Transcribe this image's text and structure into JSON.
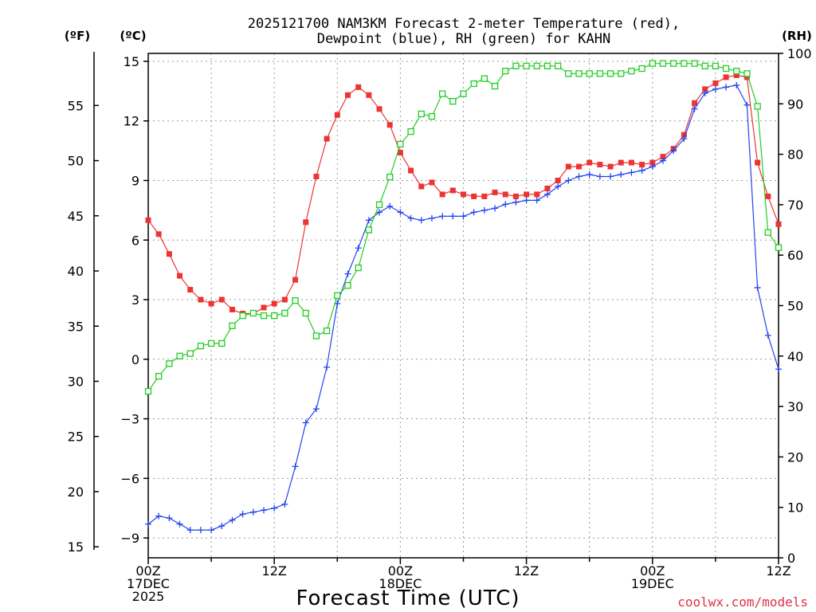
{
  "chart_data": {
    "type": "line",
    "title_line1": "2025121700 NAM3KM Forecast 2-meter Temperature (red),",
    "title_line2": "Dewpoint (blue), RH (green) for KAHN",
    "units": {
      "fahrenheit": "(ºF)",
      "celsius": "(ºC)",
      "rh": "(RH)"
    },
    "xlabel": "Forecast Time (UTC)",
    "credit": "coolwx.com/models",
    "x_range": [
      0,
      60
    ],
    "x_ticks": [
      {
        "hour": 0,
        "lines": [
          "00Z",
          "17DEC",
          "2025"
        ]
      },
      {
        "hour": 12,
        "lines": [
          "12Z"
        ]
      },
      {
        "hour": 24,
        "lines": [
          "00Z",
          "18DEC"
        ]
      },
      {
        "hour": 36,
        "lines": [
          "12Z"
        ]
      },
      {
        "hour": 48,
        "lines": [
          "00Z",
          "19DEC"
        ]
      },
      {
        "hour": 60,
        "lines": [
          "12Z"
        ]
      }
    ],
    "celsius_axis": {
      "range": [
        -10,
        15.4
      ],
      "ticks": [
        -9,
        -6,
        -3,
        0,
        3,
        6,
        9,
        12,
        15
      ],
      "labels": [
        "−9",
        "−6",
        "−3",
        "0",
        "3",
        "6",
        "9",
        "12",
        "15"
      ]
    },
    "fahrenheit_axis": {
      "ticks": [
        15,
        20,
        25,
        30,
        35,
        40,
        45,
        50,
        55
      ],
      "labels": [
        "15",
        "20",
        "25",
        "30",
        "35",
        "40",
        "45",
        "50",
        "55"
      ]
    },
    "rh_axis": {
      "range": [
        0,
        100
      ],
      "ticks": [
        0,
        10,
        20,
        30,
        40,
        50,
        60,
        70,
        80,
        90,
        100
      ],
      "labels": [
        "0",
        "10",
        "20",
        "30",
        "40",
        "50",
        "60",
        "70",
        "80",
        "90",
        "100"
      ]
    },
    "series": [
      {
        "name": "2-meter Temperature",
        "axis": "celsius",
        "color": "#ee3333",
        "marker": "filled-square",
        "values": [
          7.0,
          6.3,
          5.3,
          4.2,
          3.5,
          3.0,
          2.8,
          3.0,
          2.5,
          2.3,
          2.3,
          2.6,
          2.8,
          3.0,
          4.0,
          6.9,
          9.2,
          11.1,
          12.3,
          13.3,
          13.7,
          13.3,
          12.6,
          11.8,
          10.4,
          9.5,
          8.7,
          8.9,
          8.3,
          8.5,
          8.3,
          8.2,
          8.2,
          8.4,
          8.3,
          8.2,
          8.3,
          8.3,
          8.6,
          9.0,
          9.7,
          9.7,
          9.9,
          9.8,
          9.7,
          9.9,
          9.9,
          9.8,
          9.9,
          10.2,
          10.6,
          11.3,
          12.9,
          13.6,
          13.9,
          14.2,
          14.3,
          14.2,
          9.9,
          8.2,
          6.8
        ]
      },
      {
        "name": "Dewpoint",
        "axis": "celsius",
        "color": "#2244ee",
        "marker": "plus",
        "values": [
          -8.3,
          -7.9,
          -8.0,
          -8.3,
          -8.6,
          -8.6,
          -8.6,
          -8.4,
          -8.1,
          -7.8,
          -7.7,
          -7.6,
          -7.5,
          -7.3,
          -5.4,
          -3.2,
          -2.5,
          -0.4,
          2.8,
          4.3,
          5.6,
          7.0,
          7.4,
          7.7,
          7.4,
          7.1,
          7.0,
          7.1,
          7.2,
          7.2,
          7.2,
          7.4,
          7.5,
          7.6,
          7.8,
          7.9,
          8.0,
          8.0,
          8.3,
          8.7,
          9.0,
          9.2,
          9.3,
          9.2,
          9.2,
          9.3,
          9.4,
          9.5,
          9.7,
          10.0,
          10.5,
          11.1,
          12.6,
          13.4,
          13.6,
          13.7,
          13.8,
          12.8,
          3.6,
          1.2,
          -0.5
        ]
      },
      {
        "name": "RH",
        "axis": "rh",
        "color": "#22cc22",
        "marker": "open-square",
        "values": [
          33,
          36,
          38.5,
          40,
          40.5,
          42,
          42.5,
          42.5,
          46,
          48,
          48.5,
          48,
          48,
          48.5,
          51,
          48.5,
          44,
          45,
          52,
          54,
          57.5,
          65,
          70,
          75.5,
          82,
          84.5,
          88,
          87.5,
          92,
          90.5,
          92,
          94,
          95,
          93.5,
          96.5,
          97.5,
          97.5,
          97.5,
          97.5,
          97.5,
          96,
          96,
          96,
          96,
          96,
          96,
          96.5,
          97,
          98,
          98,
          98,
          98,
          98,
          97.5,
          97.5,
          97,
          96.5,
          96,
          89.5,
          64.5,
          61.5
        ]
      }
    ]
  }
}
